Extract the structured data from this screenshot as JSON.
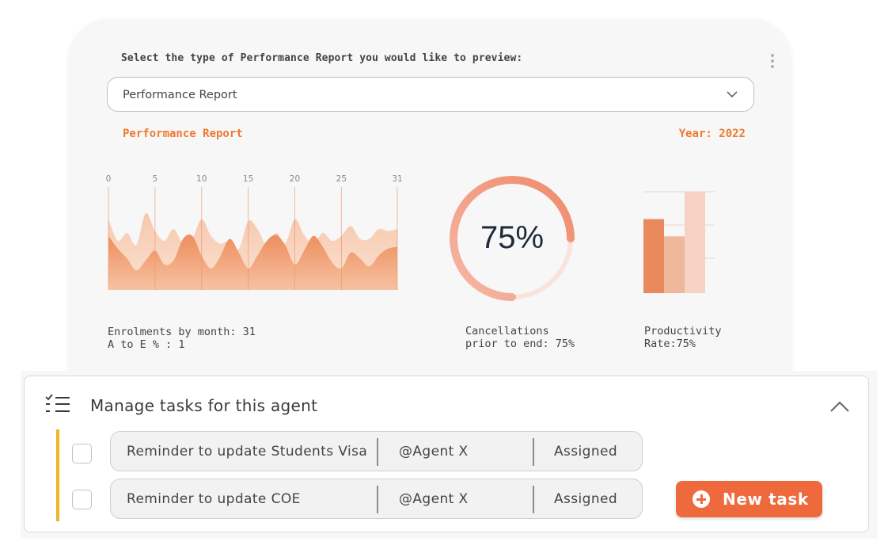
{
  "report": {
    "prompt": "Select the type of Performance Report you would like to preview:",
    "select_value": "Performance Report",
    "section_title": "Performance Report",
    "year_label": "Year: 2022",
    "menu_icon": "more-vertical-icon",
    "select_icon": "chevron-down-icon"
  },
  "chart_data": [
    {
      "type": "area",
      "x_ticks": [
        "0",
        "5",
        "10",
        "15",
        "20",
        "25",
        "31"
      ],
      "xlim": [
        0,
        31
      ],
      "series": [
        {
          "values": [
            0.72,
            0.5,
            0.58,
            0.46,
            0.78,
            0.6,
            0.5,
            0.62,
            0.47,
            0.52,
            0.72,
            0.55,
            0.47,
            0.5,
            0.42,
            0.7,
            0.62,
            0.45,
            0.58,
            0.48,
            0.72,
            0.56,
            0.47,
            0.58,
            0.5,
            0.55,
            0.65,
            0.52,
            0.52,
            0.62,
            0.6,
            0.62
          ]
        },
        {
          "values": [
            0.55,
            0.42,
            0.32,
            0.2,
            0.3,
            0.4,
            0.26,
            0.3,
            0.52,
            0.55,
            0.35,
            0.22,
            0.34,
            0.52,
            0.38,
            0.22,
            0.35,
            0.5,
            0.56,
            0.45,
            0.26,
            0.4,
            0.55,
            0.44,
            0.28,
            0.22,
            0.38,
            0.32,
            0.24,
            0.35,
            0.42,
            0.44
          ]
        }
      ],
      "colors": [
        "#f6c7ad",
        "#ec8a57"
      ]
    },
    {
      "type": "pie",
      "value": 75,
      "label": "75%",
      "colors": [
        "#ef8a6b",
        "#fae3dc"
      ]
    },
    {
      "type": "bar",
      "values": [
        0.73,
        0.56,
        1.0
      ],
      "ylim": [
        0,
        1
      ],
      "colors": [
        "#e98a5d",
        "#efb79b",
        "#f6d2c2"
      ]
    }
  ],
  "captions": {
    "enrolments_line1": "Enrolments by month: 31",
    "enrolments_line2": "A to E % : 1",
    "cancellations_line1": "Cancellations",
    "cancellations_line2": "prior to end: 75%",
    "productivity_line1": "Productivity",
    "productivity_line2": "Rate:75%"
  },
  "tasks": {
    "title": "Manage tasks for this agent",
    "header_icon": "task-list-icon",
    "collapse_icon": "chevron-up-icon",
    "accent_color": "#f0b429",
    "rows": [
      {
        "title": "Reminder to update Students Visa",
        "agent": "@Agent X",
        "status": "Assigned"
      },
      {
        "title": "Reminder to update COE",
        "agent": "@Agent X",
        "status": "Assigned"
      }
    ],
    "new_task_label": "New task",
    "new_task_icon": "plus-circle-icon",
    "button_color": "#ee6a3c"
  }
}
